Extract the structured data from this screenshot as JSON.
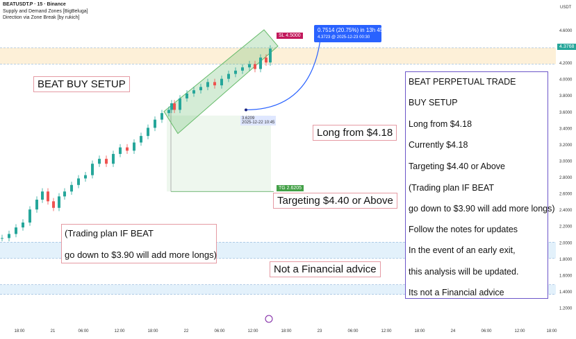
{
  "header": {
    "symbol_line": "BEATUSDT.P · 15 · Binance",
    "indicator_1": "Supply and Demand Zones [BigBeluga]",
    "indicator_2": "Direction via Zone Break [by rukich]"
  },
  "axis": {
    "currency": "USDT",
    "y_ticks": [
      "4.6000",
      "4.4000",
      "4.2000",
      "4.0000",
      "3.8000",
      "3.6000",
      "3.4000",
      "3.2000",
      "3.0000",
      "2.8000",
      "2.6000",
      "2.4000",
      "2.2000",
      "2.0000",
      "1.8000",
      "1.6000",
      "1.4000",
      "1.2000"
    ],
    "x_ticks": [
      "18:00",
      "21",
      "06:00",
      "12:00",
      "18:00",
      "22",
      "06:00",
      "12:00",
      "18:00",
      "23",
      "06:00",
      "12:00",
      "18:00",
      "24",
      "06:00",
      "12:00",
      "18:00"
    ]
  },
  "price_tags": {
    "current": "4.3768",
    "sl": "SL 4.5000",
    "tp": "TG 2.6205"
  },
  "tooltip": {
    "line1": "0.7514 (20.75%) in 13h 45m",
    "line2": "4.3723 @ 2025-12-23  00:30"
  },
  "low_point": {
    "price": "3.6209",
    "time": "2025-12-22  10:45"
  },
  "annotations": {
    "beat_buy_setup": "BEAT BUY SETUP",
    "long_from": "Long from $4.18",
    "targeting": "Targeting $4.40 or Above",
    "trading_plan_1": "(Trading plan IF BEAT",
    "trading_plan_2": "go down to $3.90 will add more longs)",
    "not_financial": "Not a Financial advice"
  },
  "notes_panel": {
    "lines": [
      "BEAT PERPETUAL TRADE",
      "BUY SETUP",
      "Long from $4.18",
      "Currently $4.18",
      "Targeting $4.40 or Above",
      "(Trading plan IF BEAT",
      "go down to $3.90 will add more longs)",
      "Follow the notes for updates",
      "In the event of an early exit,",
      "this analysis will be updated.",
      "Its not a Financial advice"
    ]
  },
  "colors": {
    "up": "#26a69a",
    "down": "#ef5350",
    "note_border": "#6b55c9",
    "box_border": "#e59aa3",
    "tooltip": "#2962ff",
    "current_tag": "#26a69a",
    "sl_tag": "#c2185b",
    "tp_tag": "#43a047"
  },
  "chart_data": {
    "type": "candlestick",
    "price_path": [
      [
        0,
        2.05
      ],
      [
        10,
        2.1
      ],
      [
        20,
        2.18
      ],
      [
        30,
        2.24
      ],
      [
        40,
        2.4
      ],
      [
        50,
        2.52
      ],
      [
        58,
        2.62
      ],
      [
        66,
        2.5
      ],
      [
        74,
        2.42
      ],
      [
        82,
        2.56
      ],
      [
        90,
        2.62
      ],
      [
        100,
        2.7
      ],
      [
        110,
        2.78
      ],
      [
        120,
        2.82
      ],
      [
        130,
        2.96
      ],
      [
        140,
        3.02
      ],
      [
        150,
        2.96
      ],
      [
        160,
        3.08
      ],
      [
        170,
        3.16
      ],
      [
        180,
        3.12
      ],
      [
        190,
        3.22
      ],
      [
        200,
        3.3
      ],
      [
        210,
        3.4
      ],
      [
        220,
        3.5
      ],
      [
        230,
        3.58
      ],
      [
        240,
        3.62
      ],
      [
        244,
        3.7
      ],
      [
        248,
        3.62
      ],
      [
        256,
        3.76
      ],
      [
        266,
        3.82
      ],
      [
        276,
        3.86
      ],
      [
        286,
        3.9
      ],
      [
        296,
        3.96
      ],
      [
        306,
        3.92
      ],
      [
        316,
        4.0
      ],
      [
        326,
        4.06
      ],
      [
        336,
        4.1
      ],
      [
        346,
        4.14
      ],
      [
        356,
        4.18
      ],
      [
        364,
        4.12
      ],
      [
        372,
        4.26
      ],
      [
        380,
        4.2
      ],
      [
        386,
        4.37
      ]
    ]
  }
}
